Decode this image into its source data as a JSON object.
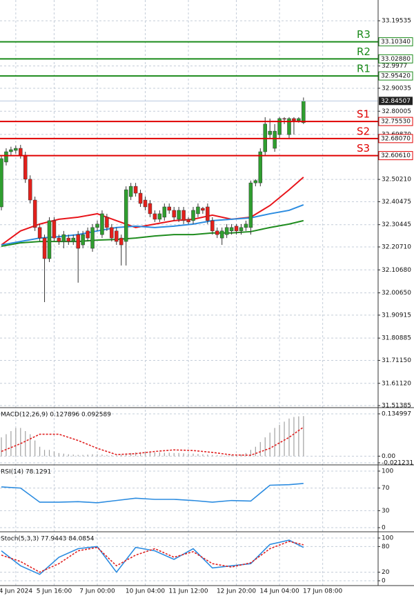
{
  "chart_data": [
    {
      "type": "candlestick",
      "categories": [
        null,
        null,
        null,
        "4 Jun 2024",
        null,
        null,
        null,
        null,
        null,
        null,
        null,
        "5 Jun 16:00",
        null,
        null,
        null,
        null,
        null,
        null,
        null,
        null,
        "7 Jun 00:00",
        null,
        null,
        null,
        null,
        null,
        null,
        null,
        null,
        null,
        "10 Jun 04:00",
        null,
        null,
        null,
        null,
        null,
        null,
        null,
        null,
        "11 Jun 12:00",
        null,
        null,
        null,
        null,
        null,
        null,
        null,
        null,
        null,
        "12 Jun 20:00",
        null,
        null,
        null,
        null,
        null,
        null,
        null,
        null,
        "14 Jun 04:00",
        null,
        null,
        null,
        null,
        null,
        null,
        null,
        null,
        "17 Jun 08:00"
      ],
      "open": [
        32.382,
        32.578,
        32.623,
        32.629,
        32.638,
        32.608,
        32.503,
        32.412,
        32.292,
        32.246,
        32.156,
        32.322,
        32.246,
        32.231,
        32.246,
        32.231,
        32.261,
        32.216,
        32.277,
        32.201,
        32.292,
        32.261,
        32.337,
        32.292,
        32.277,
        32.246,
        32.231,
        32.427,
        32.472,
        32.442,
        32.412,
        32.397,
        32.352,
        32.328,
        32.337,
        32.382,
        32.367,
        32.328,
        32.367,
        32.328,
        32.322,
        32.352,
        32.376,
        32.382,
        32.322,
        32.277,
        32.246,
        32.261,
        32.277,
        32.298,
        32.277,
        32.292,
        32.292,
        32.487,
        32.487,
        32.623,
        32.698,
        32.638,
        32.698,
        32.768,
        32.698,
        32.768,
        32.759,
        32.75,
        null,
        null,
        null,
        null
      ],
      "high": [
        32.608,
        32.638,
        32.645,
        32.65,
        32.653,
        32.623,
        32.52,
        32.427,
        32.307,
        32.261,
        32.337,
        32.337,
        32.261,
        32.277,
        32.261,
        32.261,
        32.277,
        32.277,
        32.292,
        32.307,
        32.322,
        32.367,
        32.352,
        32.307,
        32.292,
        32.261,
        32.472,
        32.487,
        32.487,
        32.457,
        32.427,
        32.412,
        32.367,
        32.367,
        32.397,
        32.397,
        32.382,
        32.382,
        32.382,
        32.337,
        32.382,
        32.397,
        32.382,
        32.397,
        32.337,
        32.292,
        32.292,
        32.307,
        32.307,
        32.307,
        32.307,
        32.322,
        32.497,
        32.503,
        32.638,
        32.774,
        32.768,
        32.744,
        32.774,
        32.774,
        32.774,
        32.774,
        32.774,
        32.86,
        null,
        null,
        null,
        null
      ],
      "low": [
        32.367,
        32.563,
        32.608,
        32.615,
        32.593,
        32.487,
        32.397,
        32.277,
        32.231,
        31.966,
        32.141,
        32.231,
        32.216,
        32.201,
        32.216,
        32.216,
        32.051,
        32.201,
        32.231,
        32.186,
        32.277,
        32.246,
        32.277,
        32.231,
        32.216,
        32.126,
        32.126,
        32.412,
        32.427,
        32.382,
        32.367,
        32.337,
        32.316,
        32.316,
        32.322,
        32.352,
        32.322,
        32.316,
        32.307,
        32.307,
        32.307,
        32.337,
        32.352,
        32.307,
        32.261,
        32.246,
        32.216,
        32.246,
        32.261,
        32.261,
        32.261,
        32.277,
        32.261,
        32.472,
        32.472,
        32.608,
        32.683,
        32.623,
        32.683,
        32.744,
        32.683,
        32.698,
        32.75,
        32.744,
        null,
        null,
        null,
        null
      ],
      "close": [
        32.593,
        32.623,
        32.632,
        32.638,
        32.608,
        32.503,
        32.412,
        32.292,
        32.246,
        32.156,
        32.322,
        32.246,
        32.231,
        32.261,
        32.231,
        32.246,
        32.201,
        32.261,
        32.246,
        32.292,
        32.307,
        32.352,
        32.292,
        32.246,
        32.231,
        32.216,
        32.457,
        32.472,
        32.442,
        32.397,
        32.382,
        32.352,
        32.328,
        32.352,
        32.382,
        32.367,
        32.337,
        32.367,
        32.322,
        32.316,
        32.367,
        32.382,
        32.367,
        32.322,
        32.277,
        32.261,
        32.277,
        32.292,
        32.292,
        32.277,
        32.292,
        32.307,
        32.487,
        32.497,
        32.623,
        32.744,
        32.713,
        32.713,
        32.768,
        32.765,
        32.768,
        32.759,
        32.768,
        32.84507,
        null,
        null,
        null,
        null
      ],
      "up_color": "#2f9e2f",
      "down_color": "#e3201b",
      "ylim": [
        31.508,
        33.286
      ],
      "yticks": [
        33.19535,
        32.9977,
        32.90035,
        32.80005,
        {
          "value": 32.6987,
          "label": "32.69870"
        },
        {
          "value": 32.5021,
          "label": "32.50210"
        },
        32.40475,
        32.30445,
        {
          "value": 32.2071,
          "label": "32.20710"
        },
        {
          "value": 32.1068,
          "label": "32.10680"
        },
        {
          "value": 32.0065,
          "label": "32.00650"
        },
        31.90915,
        31.80885,
        {
          "value": 31.7115,
          "label": "31.71150"
        },
        {
          "value": 31.6112,
          "label": "31.61120"
        },
        31.51385
      ],
      "levels": [
        {
          "name": "R3",
          "value": 33.1034,
          "label": "33.10340",
          "color": "#1a8a1a"
        },
        {
          "name": "R2",
          "value": 33.0288,
          "label": "33.02880",
          "color": "#1a8a1a"
        },
        {
          "name": "R1",
          "value": 32.9542,
          "label": "32.95420",
          "color": "#1a8a1a"
        },
        {
          "name": "S1",
          "value": 32.7553,
          "label": "32.75530",
          "color": "#e00000"
        },
        {
          "name": "S2",
          "value": 32.6807,
          "label": "32.68070",
          "color": "#e00000"
        },
        {
          "name": "S3",
          "value": 32.6061,
          "label": "32.60610",
          "color": "#e00000"
        }
      ],
      "last_price": 32.84507,
      "grid": true,
      "moving_averages": {
        "x": [
          0,
          4,
          8,
          12,
          16,
          20,
          24,
          28,
          32,
          36,
          40,
          44,
          48,
          52,
          56,
          60,
          63
        ],
        "series": [
          {
            "color": "#e8141a",
            "values": [
              32.216,
              32.277,
              32.307,
              32.328,
              32.337,
              32.352,
              32.322,
              32.292,
              32.307,
              32.322,
              32.328,
              32.346,
              32.328,
              32.337,
              32.388,
              32.457,
              32.512
            ]
          },
          {
            "color": "#2a8be0",
            "values": [
              32.216,
              32.231,
              32.246,
              32.252,
              32.261,
              32.277,
              32.292,
              32.298,
              32.292,
              32.298,
              32.307,
              32.322,
              32.328,
              32.334,
              32.352,
              32.367,
              32.391
            ]
          },
          {
            "color": "#1e8c1e",
            "values": [
              32.21,
              32.225,
              32.231,
              32.231,
              32.231,
              32.237,
              32.24,
              32.246,
              32.255,
              32.261,
              32.261,
              32.268,
              32.268,
              32.274,
              32.292,
              32.307,
              32.322
            ]
          }
        ]
      }
    },
    {
      "type": "macd",
      "title": "MACD(12,26,9) 0.127896 0.092589",
      "histogram": [
        0.06,
        0.07,
        0.08,
        0.09,
        0.09,
        0.08,
        0.07,
        0.05,
        0.03,
        0.02,
        0.02,
        0.015,
        0.01,
        0.008,
        0.006,
        0.005,
        0.004,
        0.004,
        0.005,
        0.006,
        0.006,
        0.005,
        0.004,
        0.003,
        0.002,
        0.004,
        0.008,
        0.01,
        0.012,
        0.013,
        0.014,
        0.013,
        0.012,
        0.012,
        0.011,
        0.011,
        0.01,
        0.01,
        0.009,
        0.008,
        0.008,
        0.007,
        0.006,
        0.005,
        0.004,
        0.003,
        0.002,
        0.002,
        0.003,
        0.004,
        0.005,
        0.01,
        0.02,
        0.03,
        0.045,
        0.06,
        0.075,
        0.09,
        0.1,
        0.11,
        0.12,
        0.125,
        0.127,
        0.127896
      ],
      "histogram_color": "#a0a0a0",
      "x": [
        0,
        4,
        8,
        12,
        16,
        20,
        24,
        28,
        32,
        36,
        40,
        44,
        48,
        52,
        56,
        60,
        63
      ],
      "signal": {
        "color": "#e02020",
        "values": [
          0.015,
          0.04,
          0.07,
          0.07,
          0.05,
          0.025,
          0.005,
          0.008,
          0.015,
          0.02,
          0.018,
          0.012,
          0.004,
          0.003,
          0.025,
          0.06,
          0.092589
        ]
      },
      "ylim": [
        -0.021231,
        0.134997
      ],
      "yticks": [
        0.134997,
        {
          "value": 0,
          "label": "0.00"
        },
        -0.021231
      ]
    },
    {
      "type": "rsi",
      "title": "RSI(14) 78.1291",
      "x": [
        0,
        4,
        8,
        12,
        16,
        20,
        24,
        28,
        32,
        36,
        40,
        44,
        48,
        52,
        56,
        60,
        63
      ],
      "series": [
        {
          "color": "#2a8be0",
          "values": [
            72,
            70,
            45,
            45,
            46,
            44,
            48,
            52,
            50,
            50,
            48,
            45,
            48,
            47,
            75,
            76,
            78.1291
          ]
        }
      ],
      "ylim": [
        0,
        100
      ],
      "yticks": [
        100,
        70,
        30,
        0
      ]
    },
    {
      "type": "stoch",
      "title": "Stoch(5,3,3) 77.9443 84.0854",
      "x": [
        0,
        4,
        8,
        12,
        16,
        20,
        24,
        28,
        32,
        36,
        40,
        44,
        48,
        52,
        56,
        60,
        63
      ],
      "series": [
        {
          "color": "#2a8be0",
          "values": [
            70,
            35,
            15,
            55,
            75,
            80,
            20,
            78,
            70,
            50,
            75,
            30,
            35,
            40,
            85,
            95,
            77.9443
          ]
        },
        {
          "color": "#e02020",
          "dashed": true,
          "values": [
            60,
            45,
            20,
            40,
            70,
            78,
            35,
            60,
            75,
            55,
            68,
            40,
            32,
            42,
            75,
            92,
            84.0854
          ]
        }
      ],
      "ylim": [
        0,
        100
      ],
      "yticks": [
        100,
        80,
        20,
        0
      ]
    }
  ]
}
